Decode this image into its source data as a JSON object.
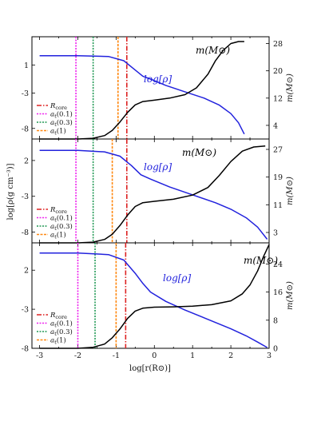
{
  "figure": {
    "xlabel": "log[r(R⊙)]",
    "ylabel_left": "log[ρ(g cm⁻³)]",
    "ylabel_right": "m(M⊙)",
    "legend_entries": [
      "R_core",
      "a_t(0.1)",
      "a_t(0.3)",
      "a_t(1)"
    ]
  },
  "colors": {
    "density": "#2222dd",
    "mass": "#000000",
    "R_core": "#dd2222",
    "a_t(0.1)": "#ee22ee",
    "a_t(0.3)": "#229955",
    "a_t(1)": "#ff8811"
  },
  "chart_data": [
    {
      "type": "line",
      "panel": "top",
      "xlim": [
        -3.2,
        3.0
      ],
      "ylim_left": [
        -9.5,
        5.0
      ],
      "ylim_right": [
        0,
        30
      ],
      "yticks_left": [
        "1",
        "-3",
        "-8"
      ],
      "yticks_left_values": [
        1,
        -3,
        -8
      ],
      "yticks_right": [
        "28",
        "20",
        "12",
        "4"
      ],
      "yticks_right_values": [
        28,
        20,
        12,
        4
      ],
      "annotations": {
        "mass_label": "m(M⊙)",
        "density_label": "log[ρ]"
      },
      "vlines": {
        "R_core": -0.72,
        "a_t(0.1)": -2.05,
        "a_t(0.3)": -1.6,
        "a_t(1)": -0.95
      },
      "series": [
        {
          "name": "log[ρ]",
          "axis": "left",
          "x": [
            -3.0,
            -2.0,
            -1.2,
            -0.8,
            -0.55,
            -0.3,
            -0.1,
            0.3,
            0.8,
            1.3,
            1.7,
            2.0,
            2.2,
            2.35
          ],
          "y": [
            2.3,
            2.3,
            2.2,
            1.6,
            0.5,
            -0.6,
            -1.0,
            -1.9,
            -2.8,
            -3.7,
            -4.7,
            -5.9,
            -7.2,
            -8.8
          ]
        },
        {
          "name": "m(M⊙)",
          "axis": "right",
          "x": [
            -3.0,
            -2.0,
            -1.6,
            -1.3,
            -1.1,
            -0.9,
            -0.7,
            -0.5,
            -0.3,
            0.0,
            0.4,
            0.8,
            1.1,
            1.4,
            1.6,
            1.8,
            2.0,
            2.2,
            2.35
          ],
          "y": [
            0.0,
            0.0,
            0.2,
            1.0,
            2.5,
            5.0,
            7.8,
            10.0,
            11.0,
            11.4,
            12.0,
            13.0,
            15.0,
            19.0,
            23.0,
            26.0,
            28.0,
            28.6,
            28.6
          ]
        }
      ]
    },
    {
      "type": "line",
      "panel": "middle",
      "xlim": [
        -3.2,
        3.0
      ],
      "ylim_left": [
        -9.5,
        5.0
      ],
      "ylim_right": [
        0,
        30
      ],
      "yticks_left": [
        "2",
        "-3",
        "-8"
      ],
      "yticks_left_values": [
        2,
        -3,
        -8
      ],
      "yticks_right": [
        "27",
        "19",
        "11",
        "3"
      ],
      "yticks_right_values": [
        27,
        19,
        11,
        3
      ],
      "annotations": {
        "mass_label": "m(M⊙)",
        "density_label": "log[ρ]"
      },
      "vlines": {
        "R_core": -0.72,
        "a_t(0.1)": -2.05,
        "a_t(0.3)": -1.6,
        "a_t(1)": -1.1
      },
      "series": [
        {
          "name": "log[ρ]",
          "axis": "left",
          "x": [
            -3.0,
            -2.0,
            -1.3,
            -0.9,
            -0.6,
            -0.35,
            -0.1,
            0.4,
            1.0,
            1.6,
            2.0,
            2.4,
            2.7,
            2.95
          ],
          "y": [
            3.4,
            3.4,
            3.2,
            2.6,
            1.3,
            0.0,
            -0.6,
            -1.7,
            -2.8,
            -3.9,
            -4.8,
            -6.0,
            -7.3,
            -9.0
          ]
        },
        {
          "name": "m(M⊙)",
          "axis": "right",
          "x": [
            -3.0,
            -2.0,
            -1.6,
            -1.3,
            -1.1,
            -0.9,
            -0.7,
            -0.5,
            -0.3,
            0.0,
            0.5,
            1.0,
            1.4,
            1.7,
            2.0,
            2.3,
            2.6,
            2.9
          ],
          "y": [
            0.0,
            0.0,
            0.2,
            1.0,
            2.5,
            5.0,
            8.0,
            10.5,
            11.6,
            12.0,
            12.6,
            13.8,
            16.0,
            19.5,
            23.5,
            26.5,
            27.7,
            28.0
          ]
        }
      ]
    },
    {
      "type": "line",
      "panel": "bottom",
      "xlim": [
        -3.2,
        3.0
      ],
      "ylim_left": [
        -8.0,
        5.5
      ],
      "ylim_right": [
        0,
        30
      ],
      "yticks_left": [
        "2",
        "-3",
        "-8"
      ],
      "yticks_left_values": [
        2,
        -3,
        -8
      ],
      "yticks_right": [
        "24",
        "16",
        "8",
        "0"
      ],
      "yticks_right_values": [
        24,
        16,
        8,
        0
      ],
      "xticks": [
        "-3",
        "-2",
        "-1",
        "0",
        "1",
        "2",
        "3"
      ],
      "xticks_values": [
        -3,
        -2,
        -1,
        0,
        1,
        2,
        3
      ],
      "annotations": {
        "mass_label": "m(M⊙)",
        "density_label": "log[ρ]"
      },
      "vlines": {
        "R_core": -0.75,
        "a_t(0.1)": -2.0,
        "a_t(0.3)": -1.55,
        "a_t(1)": -1.0
      },
      "series": [
        {
          "name": "log[ρ]",
          "axis": "left",
          "x": [
            -3.0,
            -2.0,
            -1.2,
            -0.8,
            -0.5,
            -0.3,
            -0.1,
            0.3,
            0.8,
            1.4,
            2.0,
            2.4,
            2.7,
            2.95
          ],
          "y": [
            4.2,
            4.2,
            4.0,
            3.3,
            1.6,
            0.3,
            -0.8,
            -2.0,
            -3.1,
            -4.3,
            -5.5,
            -6.4,
            -7.2,
            -7.9
          ]
        },
        {
          "name": "m(M⊙)",
          "axis": "right",
          "x": [
            -3.0,
            -2.0,
            -1.6,
            -1.3,
            -1.1,
            -0.9,
            -0.7,
            -0.5,
            -0.3,
            0.0,
            0.5,
            1.0,
            1.5,
            2.0,
            2.3,
            2.5,
            2.7,
            2.85,
            3.0
          ],
          "y": [
            0.0,
            0.0,
            0.3,
            1.2,
            3.0,
            5.5,
            8.5,
            10.6,
            11.4,
            11.7,
            11.8,
            12.0,
            12.4,
            13.5,
            15.5,
            18.0,
            22.0,
            26.0,
            29.5
          ]
        }
      ]
    }
  ]
}
